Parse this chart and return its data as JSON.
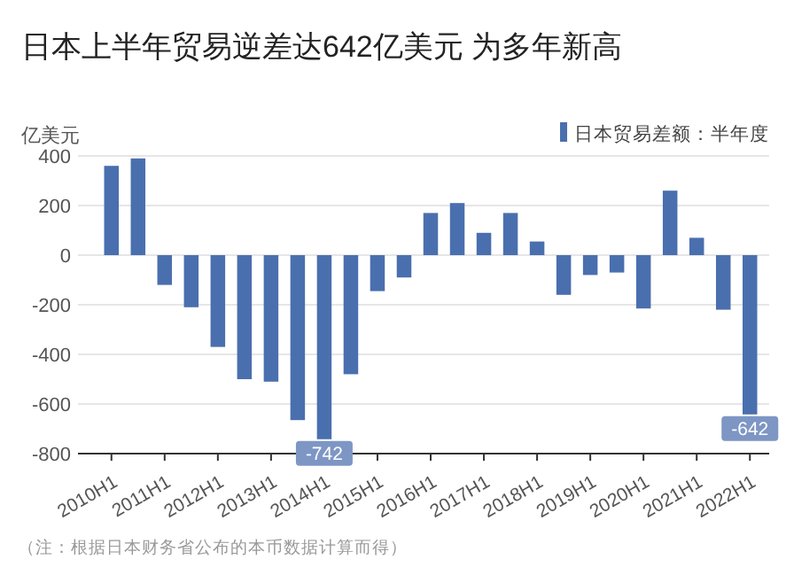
{
  "chart_data": {
    "type": "bar",
    "title": "日本上半年贸易逆差达642亿美元 为多年新高",
    "ylabel": "亿美元",
    "categories": [
      "2010H1",
      null,
      "2011H1",
      null,
      "2012H1",
      null,
      "2013H1",
      null,
      "2014H1",
      null,
      "2015H1",
      null,
      "2016H1",
      null,
      "2017H1",
      null,
      "2018H1",
      null,
      "2019H1",
      null,
      "2020H1",
      null,
      "2021H1",
      null,
      "2022H1"
    ],
    "series": [
      {
        "name": "日本贸易差额：半年度",
        "color": "#4a6fae",
        "values": [
          360,
          390,
          -120,
          -210,
          -370,
          -500,
          -510,
          -665,
          -742,
          -480,
          -145,
          -90,
          170,
          210,
          90,
          170,
          55,
          -160,
          -80,
          -70,
          -215,
          260,
          70,
          -220,
          -642
        ],
        "value_labels": [
          null,
          null,
          null,
          null,
          null,
          null,
          null,
          null,
          "-742",
          null,
          null,
          null,
          null,
          null,
          null,
          null,
          null,
          null,
          null,
          null,
          null,
          null,
          null,
          null,
          "-642"
        ]
      }
    ],
    "ylim": [
      -800,
      400
    ],
    "yticks": [
      -800,
      -600,
      -400,
      -200,
      0,
      200,
      400
    ],
    "grid": "y",
    "legend": "top right",
    "annotations": [
      "（注：根据日本财务省公布的本币数据计算而得）"
    ]
  }
}
